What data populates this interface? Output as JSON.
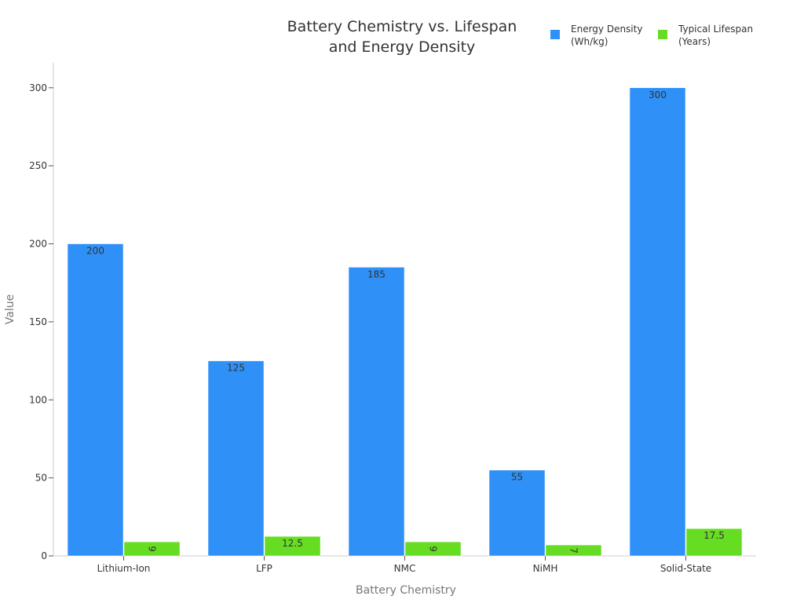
{
  "chart_data": {
    "type": "bar",
    "title": [
      "Battery Chemistry vs. Lifespan",
      "and Energy Density"
    ],
    "xlabel": "Battery Chemistry",
    "ylabel": "Value",
    "categories": [
      "Lithium-Ion",
      "LFP",
      "NMC",
      "NiMH",
      "Solid-State"
    ],
    "series": [
      {
        "name": [
          "Energy Density",
          "(Wh/kg)"
        ],
        "color": "#2f91f7",
        "values": [
          200,
          125,
          185,
          55,
          300
        ],
        "labels": [
          "200",
          "125",
          "185",
          "55",
          "300"
        ]
      },
      {
        "name": [
          "Typical Lifespan",
          "(Years)"
        ],
        "color": "#66dd22",
        "values": [
          9,
          12.5,
          9,
          7,
          17.5
        ],
        "labels": [
          "9",
          "12.5",
          "9",
          "7",
          "17.5"
        ]
      }
    ],
    "ylim": [
      0,
      316
    ],
    "yticks": [
      0,
      50,
      100,
      150,
      200,
      250,
      300
    ],
    "grid": false,
    "legend_position": "top-right"
  }
}
